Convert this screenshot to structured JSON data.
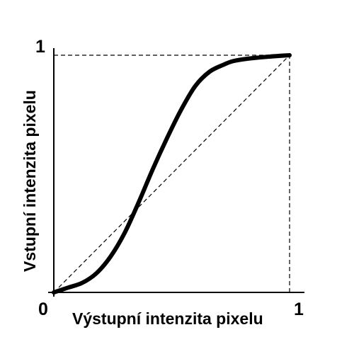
{
  "chart_data": {
    "type": "line",
    "xlabel": "Výstupní intenzita pixelu",
    "ylabel": "Vstupní intenzita pixelu",
    "xlim": [
      0,
      1
    ],
    "ylim": [
      0,
      1
    ],
    "tick_labels": {
      "origin": "0",
      "x_max": "1",
      "y_max": "1"
    },
    "grid": false,
    "legend": "none",
    "series": [
      {
        "style": "solid-thick",
        "color": "#000000",
        "x": [
          0,
          0.06,
          0.12,
          0.18,
          0.24,
          0.3,
          0.36,
          0.42,
          0.48,
          0.54,
          0.6,
          0.66,
          0.72,
          0.76,
          0.82,
          0.9,
          1.0
        ],
        "y": [
          0,
          0.02,
          0.04,
          0.08,
          0.15,
          0.25,
          0.38,
          0.52,
          0.65,
          0.77,
          0.87,
          0.93,
          0.96,
          0.975,
          0.985,
          0.993,
          1.0
        ]
      },
      {
        "style": "dashed",
        "color": "#000000",
        "x": [
          0,
          1
        ],
        "y": [
          0,
          1
        ]
      }
    ],
    "reference_lines": [
      {
        "style": "dashed",
        "from": [
          0,
          1
        ],
        "to": [
          1,
          1
        ]
      },
      {
        "style": "dashed",
        "from": [
          1,
          0
        ],
        "to": [
          1,
          1
        ]
      }
    ]
  }
}
